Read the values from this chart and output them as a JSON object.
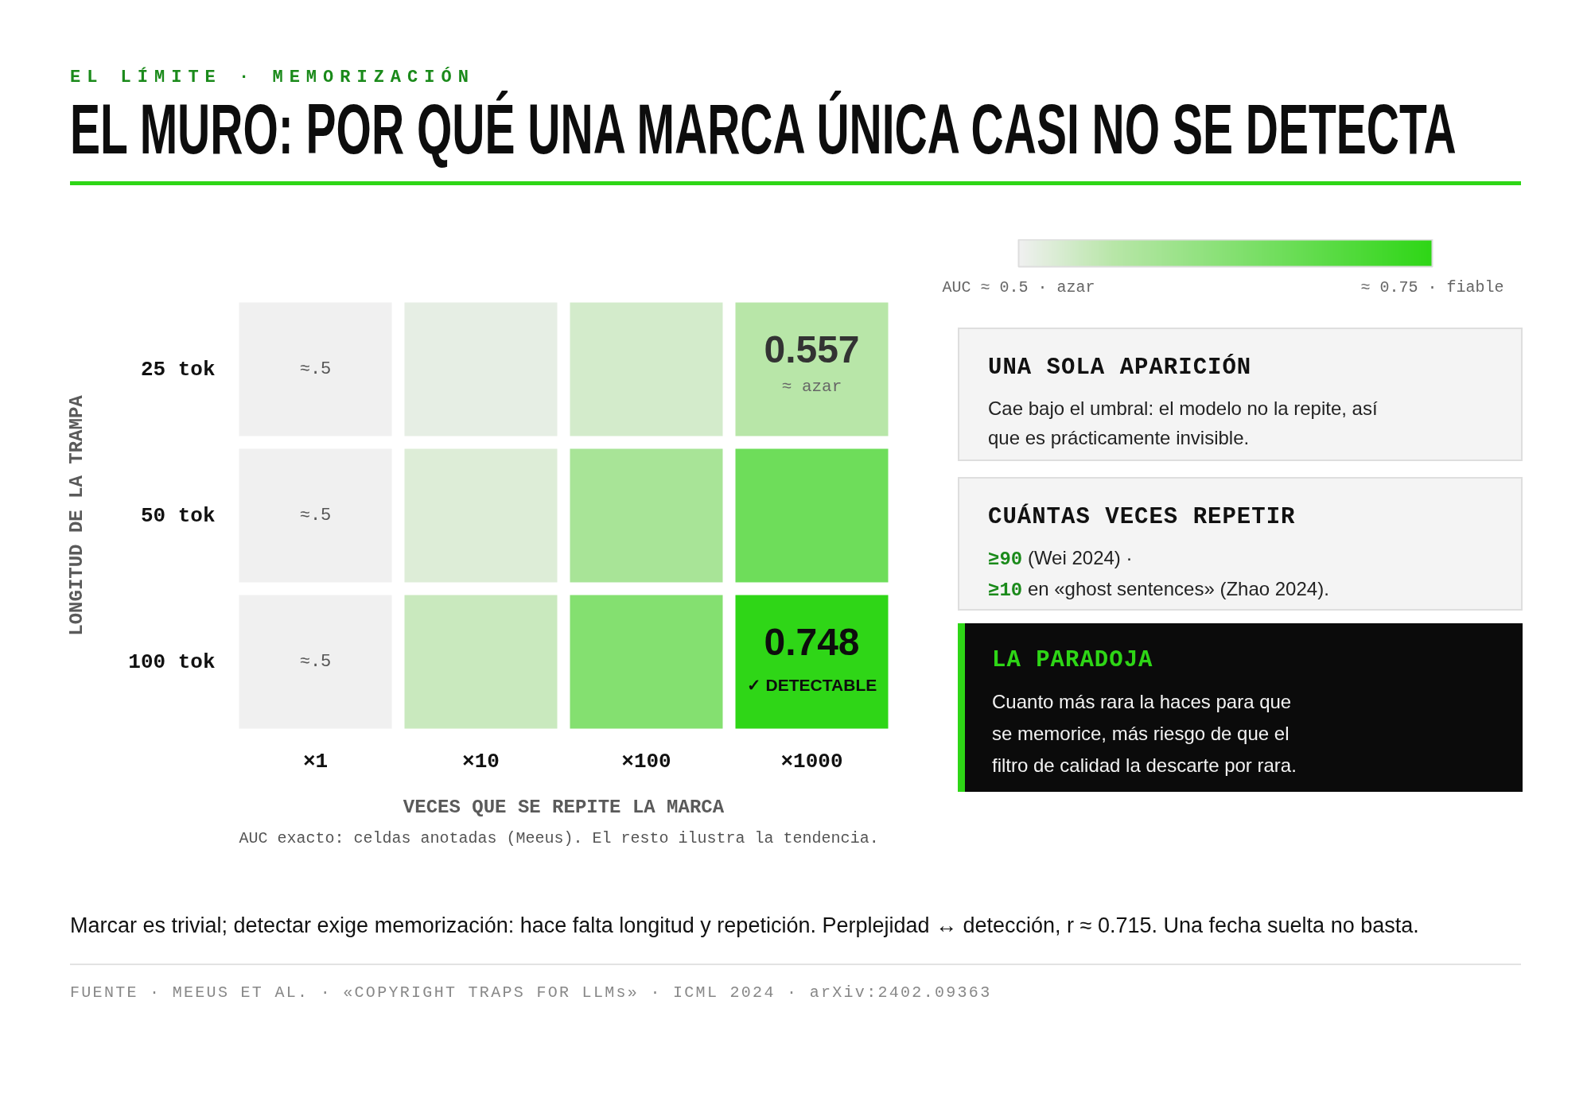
{
  "chart_data": [
    {
      "type": "heatmap",
      "subtitle": "EL LÍMITE · MEMORIZACIÓN",
      "title": "EL MURO: POR QUÉ UNA MARCA ÚNICA CASI NO SE DETECTA",
      "xlabel": "VECES QUE SE REPITE LA MARCA",
      "ylabel": "LONGITUD DE LA TRAMPA",
      "categories": [
        "×1",
        "×10",
        "×100",
        "×1000"
      ],
      "y_categories": [
        "25 tok",
        "50 tok",
        "100 tok"
      ],
      "cells": [
        [
          0.5,
          0.51,
          0.53,
          0.557
        ],
        [
          0.5,
          0.52,
          0.58,
          0.66
        ],
        [
          0.5,
          0.54,
          0.63,
          0.748
        ]
      ],
      "cell_labels": [
        [
          "≈.5",
          null,
          null,
          "0.557\n≈ azar"
        ],
        [
          "≈.5",
          null,
          null,
          null
        ],
        [
          "≈.5",
          null,
          null,
          "0.748\n✓ DETECTABLE"
        ]
      ],
      "clim": [
        0.5,
        0.75
      ],
      "cticks": [
        {
          "value": 0.5,
          "label": "AUC ≈ 0.5 · azar"
        },
        {
          "value": 0.75,
          "label": "≈ 0.75 · fiable"
        }
      ],
      "annotations": [
        "AUC exacto: celdas anotadas (Meeus). El resto ilustra la tendencia.",
        "Marcar es trivial; detectar exige memorización: hace falta longitud y repetición. Perplejidad ↔ detección, r ≈ 0.715. Una fecha suelta no basta.",
        "FUENTE · MEEUS ET AL. · «COPYRIGHT TRAPS FOR LLMs» · ICML 2024 · arXiv:2402.09363"
      ]
    },
    {
      "type": "other",
      "title": "UNA SOLA APARICIÓN",
      "annotations": [
        "Cae bajo el umbral: el modelo no la repite, así que es prácticamente invisible."
      ]
    },
    {
      "type": "other",
      "title": "CUÁNTAS VECES REPETIR",
      "annotations": [
        "≥90 (Wei 2024) ·",
        "≥10 en «ghost sentences» (Zhao 2024)."
      ]
    },
    {
      "type": "other",
      "title": "LA PARADOJA",
      "annotations": [
        "Cuanto más rara la haces para que se memorice, más riesgo de que el filtro de calidad la descarte por rara."
      ]
    }
  ]
}
